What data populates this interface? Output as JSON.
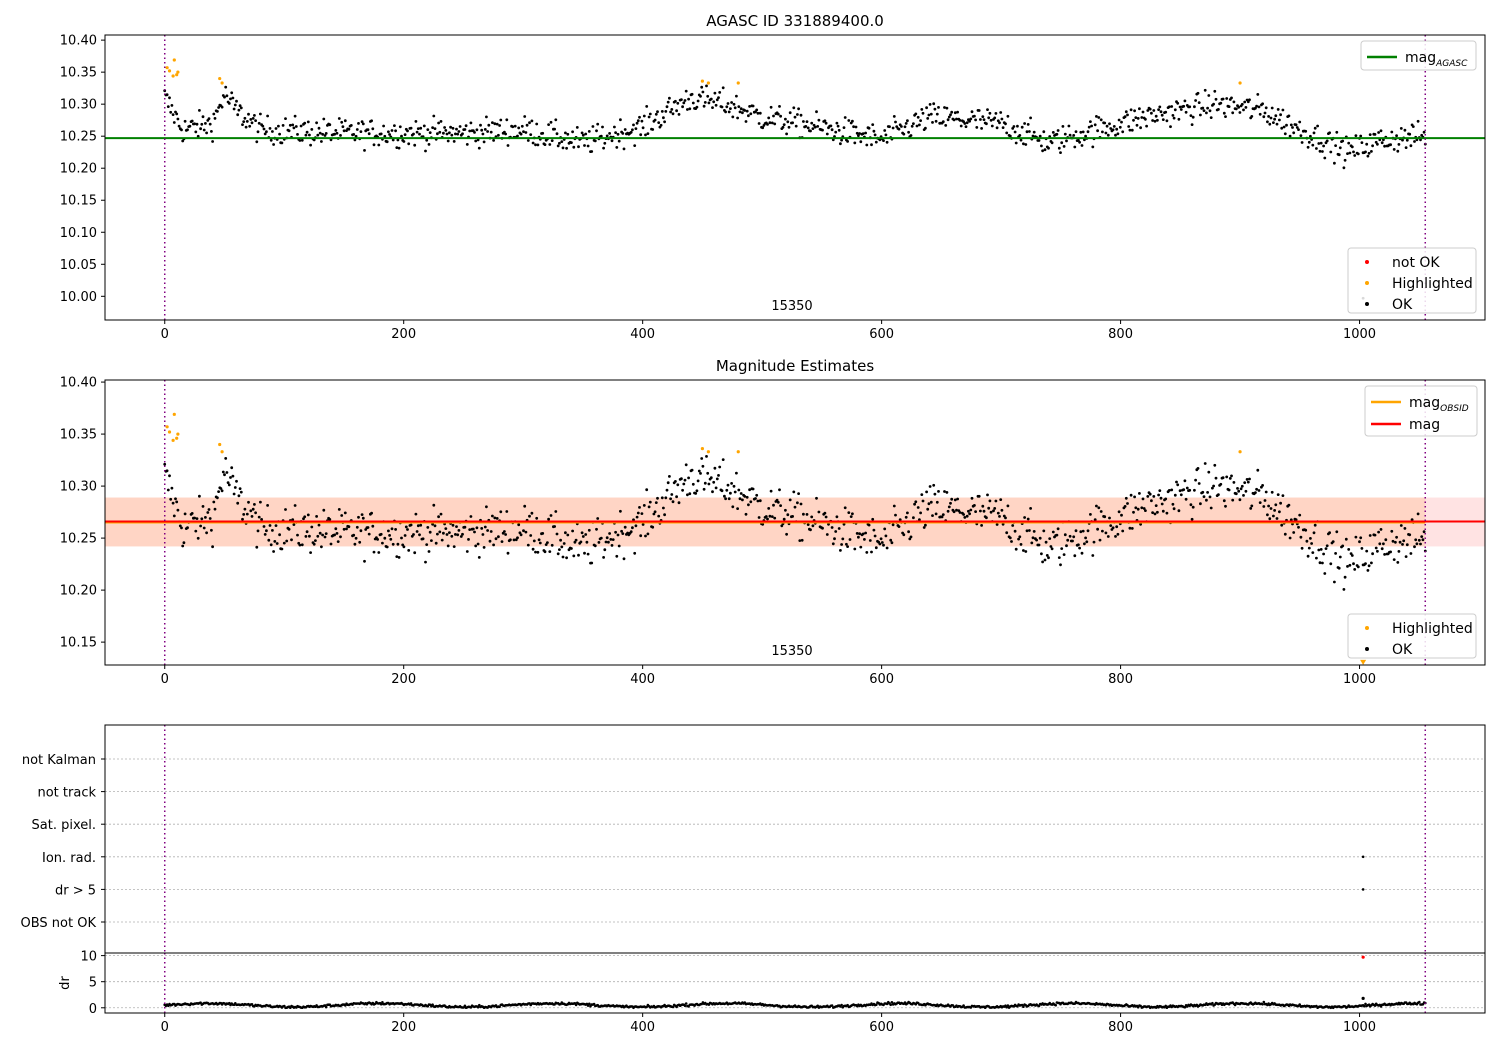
{
  "chart_data": [
    {
      "type": "scatter",
      "title": "AGASC ID 331889400.0",
      "xlim": [
        -50,
        1105
      ],
      "ylim": [
        9.963,
        10.408
      ],
      "xticks": [
        0,
        200,
        400,
        600,
        800,
        1000,
        1200
      ],
      "yticks": [
        10.0,
        10.05,
        10.1,
        10.15,
        10.2,
        10.25,
        10.3,
        10.35,
        10.4
      ],
      "ytick_decimals": 2,
      "obs_boundaries": [
        0,
        1055
      ],
      "obs_label": "15350",
      "reference_line": {
        "name": "mag",
        "sub": "AGASC",
        "value": 10.247,
        "x": [
          -50,
          1110
        ],
        "color": "#008000"
      },
      "legend_top": [
        {
          "label": "mag",
          "sub": "AGASC",
          "color": "#008000",
          "kind": "line"
        }
      ],
      "legend_bottom": [
        {
          "label": "not OK",
          "color": "#ff0000",
          "kind": "dot"
        },
        {
          "label": "Highlighted",
          "color": "#ffa500",
          "kind": "dot"
        },
        {
          "label": "OK",
          "color": "#000000",
          "kind": "dot"
        }
      ],
      "highlighted_points": [
        [
          2,
          10.357
        ],
        [
          4,
          10.352
        ],
        [
          7,
          10.344
        ],
        [
          8,
          10.369
        ],
        [
          10,
          10.346
        ],
        [
          11,
          10.35
        ],
        [
          46,
          10.34
        ],
        [
          48,
          10.333
        ],
        [
          450,
          10.336
        ],
        [
          455,
          10.333
        ],
        [
          480,
          10.333
        ],
        [
          900,
          10.333
        ]
      ],
      "notok_points": [],
      "extra_ok_points": [
        [
          1003,
          9.997
        ]
      ],
      "ok_series_model": {
        "n": 1055,
        "x_range": [
          0,
          1055
        ],
        "baseline": 10.26,
        "anchors": [
          [
            0,
            10.31
          ],
          [
            15,
            10.26
          ],
          [
            40,
            10.27
          ],
          [
            50,
            10.315
          ],
          [
            60,
            10.29
          ],
          [
            80,
            10.26
          ],
          [
            150,
            10.255
          ],
          [
            250,
            10.255
          ],
          [
            300,
            10.26
          ],
          [
            350,
            10.24
          ],
          [
            400,
            10.265
          ],
          [
            440,
            10.31
          ],
          [
            470,
            10.3
          ],
          [
            500,
            10.28
          ],
          [
            560,
            10.26
          ],
          [
            600,
            10.245
          ],
          [
            640,
            10.28
          ],
          [
            700,
            10.27
          ],
          [
            740,
            10.24
          ],
          [
            780,
            10.26
          ],
          [
            820,
            10.28
          ],
          [
            880,
            10.3
          ],
          [
            920,
            10.29
          ],
          [
            950,
            10.26
          ],
          [
            990,
            10.225
          ],
          [
            1020,
            10.245
          ],
          [
            1055,
            10.25
          ]
        ],
        "noise": 0.018
      }
    },
    {
      "type": "scatter",
      "title": "Magnitude Estimates",
      "xlim": [
        -50,
        1105
      ],
      "ylim": [
        10.128,
        10.402
      ],
      "xticks": [
        0,
        200,
        400,
        600,
        800,
        1000,
        1200
      ],
      "yticks": [
        10.15,
        10.2,
        10.25,
        10.3,
        10.35,
        10.4
      ],
      "ytick_decimals": 2,
      "obs_boundaries": [
        0,
        1055
      ],
      "obs_label": "15350",
      "reference_lines": [
        {
          "name": "mag",
          "sub": "OBSID",
          "value": 10.265,
          "x": [
            -50,
            1055
          ],
          "color": "#ffa500"
        },
        {
          "name": "mag",
          "value": 10.266,
          "x": [
            -50,
            1110
          ],
          "color": "#ff0000"
        }
      ],
      "bands": [
        {
          "x": [
            -50,
            1110
          ],
          "y": [
            10.242,
            10.289
          ],
          "color": "#ff7f7f",
          "opacity": 0.22
        },
        {
          "x": [
            -50,
            1055
          ],
          "y": [
            10.242,
            10.289
          ],
          "color": "#ffa050",
          "opacity": 0.2
        }
      ],
      "legend_top": [
        {
          "label": "mag",
          "sub": "OBSID",
          "color": "#ffa500",
          "kind": "line"
        },
        {
          "label": "mag",
          "color": "#ff0000",
          "kind": "line"
        }
      ],
      "legend_bottom": [
        {
          "label": "Highlighted",
          "color": "#ffa500",
          "kind": "dot"
        },
        {
          "label": "OK",
          "color": "#000000",
          "kind": "dot"
        }
      ],
      "highlighted_points": [
        [
          2,
          10.357
        ],
        [
          4,
          10.352
        ],
        [
          7,
          10.344
        ],
        [
          8,
          10.369
        ],
        [
          10,
          10.346
        ],
        [
          11,
          10.35
        ],
        [
          46,
          10.34
        ],
        [
          48,
          10.333
        ],
        [
          450,
          10.336
        ],
        [
          455,
          10.333
        ],
        [
          480,
          10.333
        ],
        [
          900,
          10.333
        ]
      ],
      "notok_points": [],
      "edge_marker": {
        "x": 1003,
        "y": 10.131,
        "color": "#ffa500"
      }
    },
    {
      "type": "scatter",
      "title": "",
      "xlim": [
        -50,
        1105
      ],
      "flag_rows": [
        "not Kalman",
        "not track",
        "Sat. pixel.",
        "Ion. rad.",
        "dr > 5",
        "OBS not OK"
      ],
      "flag_points": [
        {
          "row": "Ion. rad.",
          "x": 1003
        },
        {
          "row": "dr > 5",
          "x": 1003
        }
      ],
      "obs_boundaries": [
        0,
        1055
      ],
      "dr_panel": {
        "ylabel": "dr",
        "ylim": [
          -1,
          10.5
        ],
        "yticks": [
          0,
          5,
          10
        ],
        "xticks": [
          0,
          200,
          400,
          600,
          800,
          1000,
          1200
        ],
        "outliers": [
          {
            "x": 1003,
            "y": 9.7,
            "color": "#ff0000"
          },
          {
            "x": 1003,
            "y": 1.8,
            "color": "#000000"
          }
        ]
      }
    }
  ]
}
